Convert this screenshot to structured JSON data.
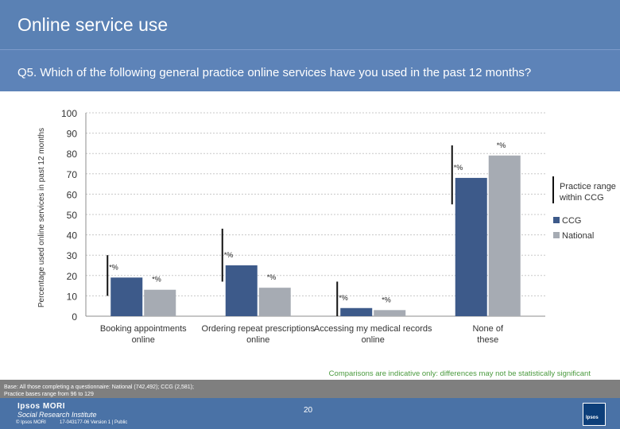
{
  "header": {
    "title": "Online service use"
  },
  "question": "Q5. Which of the following general practice online services have you used in the past 12 months?",
  "chart_data": {
    "type": "bar",
    "ylabel": "Percentage used online services in past 12 months",
    "ylim": [
      0,
      100
    ],
    "yticks": [
      0,
      10,
      20,
      30,
      40,
      50,
      60,
      70,
      80,
      90,
      100
    ],
    "grid": true,
    "categories": [
      "Booking appointments online",
      "Ordering repeat prescriptions online",
      "Accessing my medical records online",
      "None of these"
    ],
    "series": [
      {
        "name": "CCG",
        "color": "#3d5a8a",
        "values": [
          19,
          25,
          4,
          68
        ],
        "labels": [
          "*%",
          "*%",
          "*%",
          "*%"
        ]
      },
      {
        "name": "National",
        "color": "#a6abb3",
        "values": [
          13,
          14,
          3,
          79
        ],
        "labels": [
          "*%",
          "*%",
          "*%",
          "*%"
        ]
      }
    ],
    "practice_range": [
      [
        10,
        30
      ],
      [
        17,
        43
      ],
      [
        0,
        17
      ],
      [
        55,
        84
      ]
    ],
    "legend": {
      "position": "right",
      "range_label": "Practice range within CCG",
      "items": [
        {
          "name": "CCG",
          "color": "#3d5a8a"
        },
        {
          "name": "National",
          "color": "#a6abb3"
        }
      ]
    },
    "note": "Comparisons are indicative only: differences may not be statistically significant",
    "note_color": "#4a9a3e"
  },
  "footnote": {
    "line1": "Base: All those completing a questionnaire: National (742,492); CCG (2,581);",
    "line2": "Practice bases range from 96 to 129"
  },
  "footer": {
    "logo_brand": "Ipsos MORI",
    "logo_sub": "Social Research Institute",
    "copyright": "© Ipsos MORI",
    "version": "17-043177-06 Version 1 | Public",
    "page_number": "20",
    "badge": "Ipsos"
  }
}
